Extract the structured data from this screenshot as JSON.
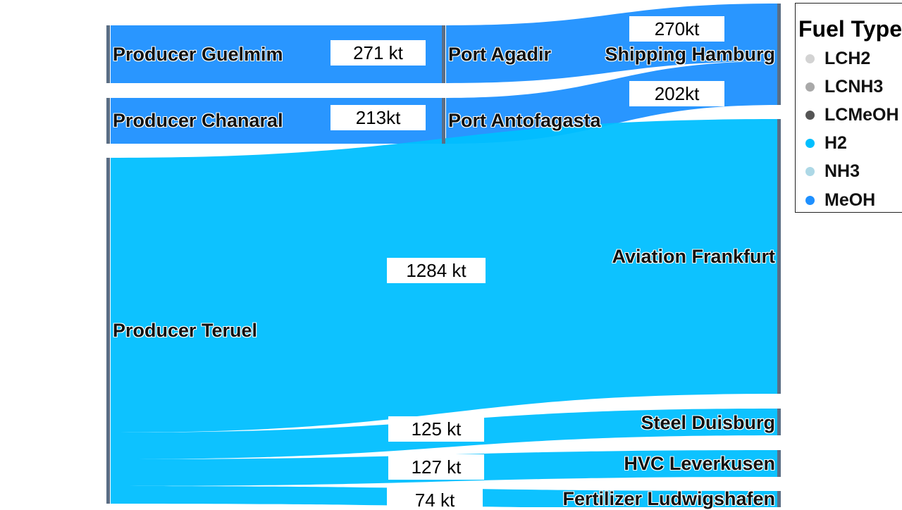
{
  "colors": {
    "LCH2": "#d3d3d3",
    "LCNH3": "#a9a9a9",
    "LCMeOH": "#555555",
    "H2": "#00bfff",
    "NH3": "#add8e6",
    "MeOH": "#1e90ff",
    "node": "#5a6e85"
  },
  "nodes": {
    "producer_guelmim": "Producer Guelmim",
    "producer_chanaral": "Producer Chanaral",
    "producer_teruel": "Producer Teruel",
    "port_agadir": "Port Agadir",
    "port_antofagasta": "Port Antofagasta",
    "shipping_hamburg": "Shipping Hamburg",
    "aviation_frankfurt": "Aviation Frankfurt",
    "steel_duisburg": "Steel Duisburg",
    "hvc_leverkusen": "HVC Leverkusen",
    "fertilizer_ludwigshafen": "Fertilizer Ludwigshafen"
  },
  "flow_labels": {
    "guelmim_agadir": "271 kt",
    "chanaral_antofagasta": "213kt",
    "agadir_hamburg": "270kt",
    "antofagasta_hamburg": "202kt",
    "teruel_frankfurt": "1284 kt",
    "teruel_duisburg": "125 kt",
    "teruel_leverkusen": "127 kt",
    "teruel_ludwigshafen": "74 kt"
  },
  "legend": {
    "title": "Fuel Type",
    "items": [
      {
        "label": "LCH2",
        "icon": "dot-icon"
      },
      {
        "label": "LCNH3",
        "icon": "dot-icon"
      },
      {
        "label": "LCMeOH",
        "icon": "dot-icon"
      },
      {
        "label": "H2",
        "icon": "dot-icon"
      },
      {
        "label": "NH3",
        "icon": "dot-icon"
      },
      {
        "label": "MeOH",
        "icon": "dot-icon"
      }
    ]
  },
  "chart_data": {
    "type": "sankey",
    "units": "kt",
    "links": [
      {
        "source": "Producer Guelmim",
        "target": "Port Agadir",
        "value": 271,
        "fuel": "MeOH"
      },
      {
        "source": "Producer Chanaral",
        "target": "Port Antofagasta",
        "value": 213,
        "fuel": "MeOH"
      },
      {
        "source": "Port Agadir",
        "target": "Shipping Hamburg",
        "value": 270,
        "fuel": "MeOH"
      },
      {
        "source": "Port Antofagasta",
        "target": "Shipping Hamburg",
        "value": 202,
        "fuel": "MeOH"
      },
      {
        "source": "Producer Teruel",
        "target": "Aviation Frankfurt",
        "value": 1284,
        "fuel": "H2"
      },
      {
        "source": "Producer Teruel",
        "target": "Steel Duisburg",
        "value": 125,
        "fuel": "H2"
      },
      {
        "source": "Producer Teruel",
        "target": "HVC Leverkusen",
        "value": 127,
        "fuel": "H2"
      },
      {
        "source": "Producer Teruel",
        "target": "Fertilizer Ludwigshafen",
        "value": 74,
        "fuel": "H2"
      }
    ]
  }
}
